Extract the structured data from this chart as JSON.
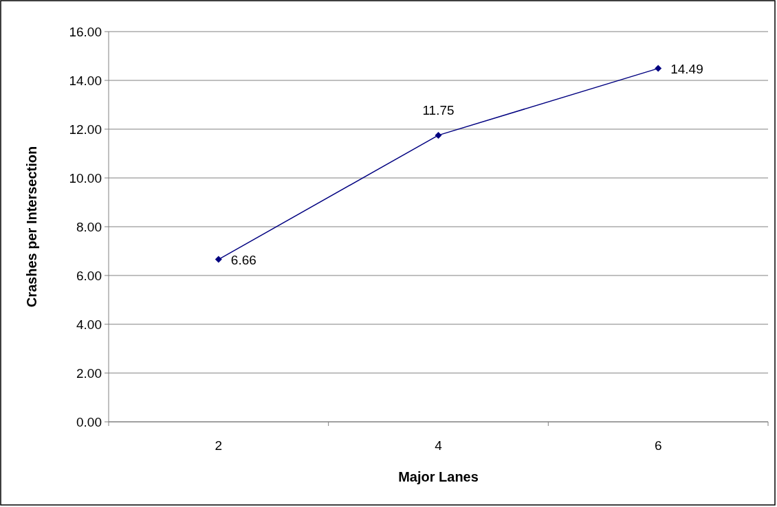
{
  "chart_data": {
    "type": "line",
    "xlabel": "Major Lanes",
    "ylabel": "Crashes per Intersection",
    "categories": [
      "2",
      "4",
      "6"
    ],
    "series": [
      {
        "color": "#000080",
        "values": [
          6.66,
          11.75,
          14.49
        ]
      }
    ],
    "ylim": [
      0,
      16
    ],
    "yticks": [
      {
        "value": 0,
        "label": "0.00"
      },
      {
        "value": 2,
        "label": "2.00"
      },
      {
        "value": 4,
        "label": "4.00"
      },
      {
        "value": 6,
        "label": "6.00"
      },
      {
        "value": 8,
        "label": "8.00"
      },
      {
        "value": 10,
        "label": "10.00"
      },
      {
        "value": 12,
        "label": "12.00"
      },
      {
        "value": 14,
        "label": "14.00"
      },
      {
        "value": 16,
        "label": "16.00"
      }
    ],
    "grid": "y",
    "marker": "diamond",
    "line_style": "solid",
    "data_labels": true
  }
}
